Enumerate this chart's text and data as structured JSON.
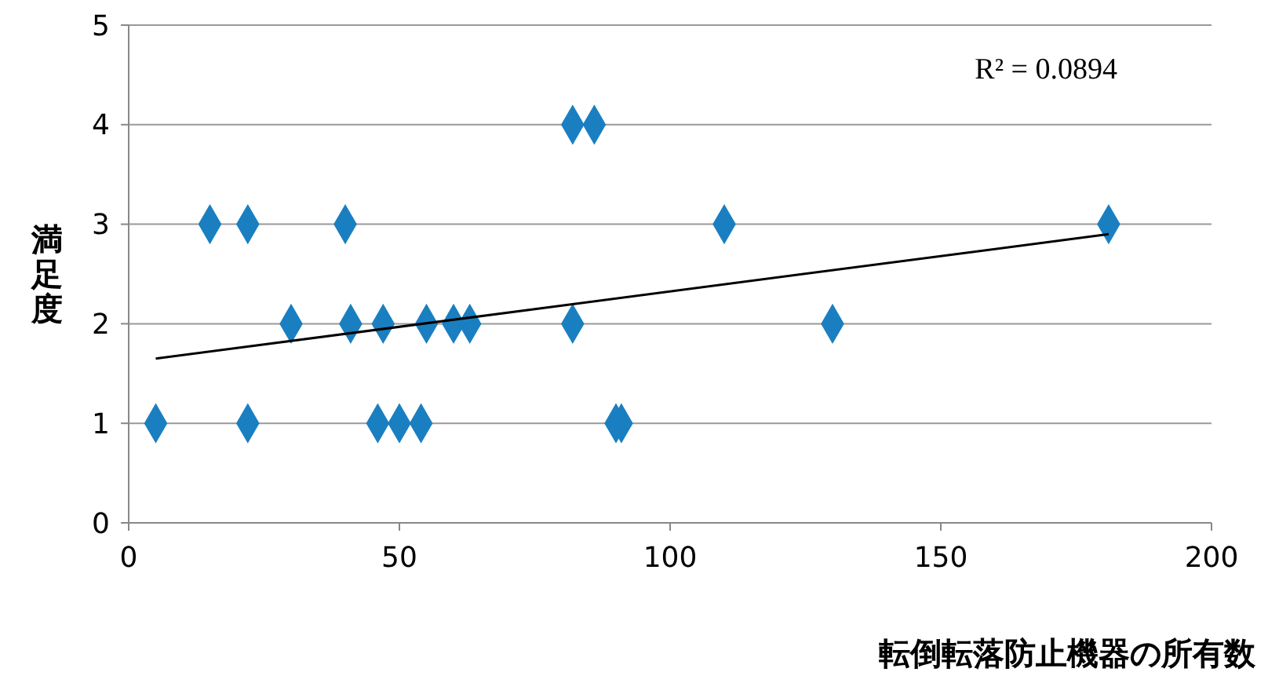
{
  "chart_data": {
    "type": "scatter",
    "xlabel": "転倒転落防止機器の所有数",
    "ylabel": "満足度",
    "annotations": [
      "R² = 0.0894"
    ],
    "xlim": [
      0,
      200
    ],
    "xticks": [
      0,
      50,
      100,
      150,
      200
    ],
    "ylim": [
      0,
      5
    ],
    "yticks": [
      0,
      1,
      2,
      3,
      4,
      5
    ],
    "grid": "y",
    "marker": "diamond",
    "series": [
      {
        "color": "#1a7fc1",
        "x": [
          5,
          22,
          46,
          50,
          54,
          90,
          91,
          30,
          41,
          47,
          55,
          60,
          63,
          82,
          130,
          15,
          22,
          40,
          110,
          181,
          82,
          86
        ],
        "values": [
          1,
          1,
          1,
          1,
          1,
          1,
          1,
          2,
          2,
          2,
          2,
          2,
          2,
          2,
          2,
          3,
          3,
          3,
          3,
          3,
          4,
          4
        ]
      },
      {
        "type": "line",
        "color": "#000000",
        "marker": "none",
        "x": [
          5,
          181
        ],
        "values": [
          1.65,
          2.9
        ]
      }
    ]
  }
}
